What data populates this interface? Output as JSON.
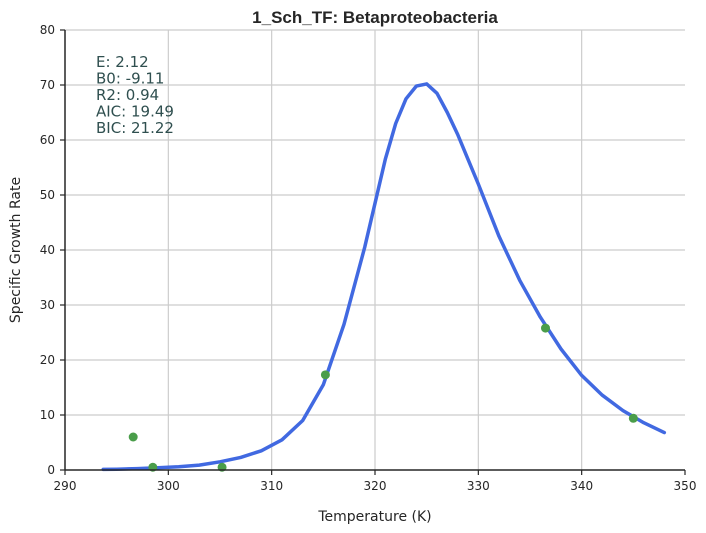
{
  "chart_data": {
    "type": "scatter",
    "title": "1_Sch_TF: Betaproteobacteria",
    "xlabel": "Temperature (K)",
    "ylabel": "Specific Growth Rate",
    "xlim": [
      290,
      350
    ],
    "ylim": [
      0,
      80
    ],
    "x_ticks": [
      290,
      300,
      310,
      320,
      330,
      340,
      350
    ],
    "y_ticks": [
      0,
      10,
      20,
      30,
      40,
      50,
      60,
      70,
      80
    ],
    "grid": true,
    "stats": [
      {
        "label": "E:",
        "value": "2.12"
      },
      {
        "label": "B0:",
        "value": "-9.11"
      },
      {
        "label": "R2:",
        "value": "0.94"
      },
      {
        "label": "AIC:",
        "value": "19.49"
      },
      {
        "label": "BIC:",
        "value": "21.22"
      }
    ],
    "series": [
      {
        "kind": "points",
        "color": "#4a9d4a",
        "points": [
          {
            "x": 296.6,
            "y": 6.0
          },
          {
            "x": 298.5,
            "y": 0.5
          },
          {
            "x": 305.2,
            "y": 0.5
          },
          {
            "x": 315.2,
            "y": 17.3
          },
          {
            "x": 336.5,
            "y": 25.8
          },
          {
            "x": 345.0,
            "y": 9.4
          }
        ]
      },
      {
        "kind": "fit",
        "color": "#4169e1",
        "x": [
          293.7,
          295,
          297,
          299,
          301,
          303,
          305,
          307,
          309,
          311,
          313,
          315,
          317,
          319,
          320,
          321,
          322,
          323,
          324,
          325,
          326,
          327,
          328,
          329,
          330,
          332,
          334,
          336,
          338,
          340,
          342,
          344,
          346,
          348
        ],
        "y": [
          0.1,
          0.15,
          0.25,
          0.4,
          0.6,
          0.9,
          1.5,
          2.3,
          3.5,
          5.5,
          9.0,
          15.5,
          26.5,
          40.5,
          48.5,
          56.5,
          63.0,
          67.5,
          69.8,
          70.2,
          68.5,
          65.0,
          61.0,
          56.5,
          52.0,
          42.5,
          34.5,
          27.8,
          22.0,
          17.2,
          13.6,
          10.8,
          8.6,
          6.8
        ]
      }
    ]
  }
}
